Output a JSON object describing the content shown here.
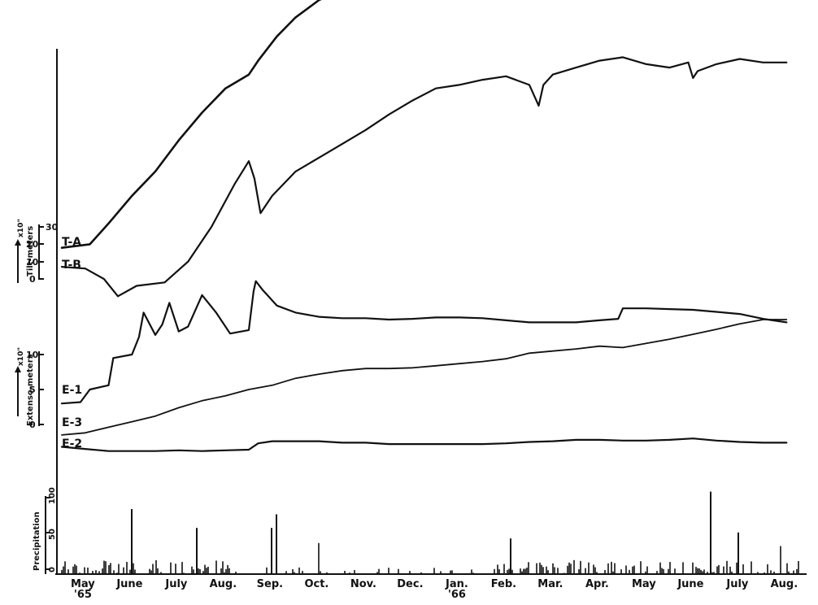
{
  "chart_data": {
    "type": "line",
    "title": "",
    "x_axis": {
      "tick_labels": [
        "May\n'65",
        "June",
        "July",
        "Aug.",
        "Sep.",
        "Oct.",
        "Nov.",
        "Dec.",
        "Jan.\n'66",
        "Feb.",
        "Mar.",
        "Apr.",
        "May",
        "June",
        "July",
        "Aug."
      ]
    },
    "panels": [
      {
        "name": "tilt-meters",
        "ylabel": "Tilt-meters",
        "y_unit_label": "x10\"",
        "y_ticks": [
          0,
          10,
          20,
          30
        ],
        "series": [
          {
            "name": "T-A",
            "x": [
              0.0,
              0.6,
              1.0,
              1.5,
              2.0,
              2.5,
              3.0,
              3.5,
              4.0,
              4.2,
              4.6,
              5.0,
              5.5,
              6.0,
              6.5,
              7.0,
              7.5,
              8.0,
              8.5,
              9.0,
              9.5,
              10.0,
              10.5,
              11.0,
              11.5,
              12.0,
              12.5,
              13.0,
              13.4,
              13.5,
              13.6,
              14.0,
              14.5,
              15.0,
              15.5
            ],
            "y": [
              18,
              20,
              32,
              48,
              62,
              80,
              96,
              110,
              118,
              126,
              140,
              151,
              161,
              167,
              162,
              175,
              188,
              196,
              201,
              207,
              211,
              214,
              216,
              220,
              221,
              223,
              224,
              226,
              227,
              256,
              257,
              255,
              248,
              254,
              258
            ]
          },
          {
            "name": "T-B",
            "x": [
              0.0,
              0.5,
              0.9,
              1.2,
              1.6,
              2.2,
              2.7,
              3.2,
              3.7,
              4.0,
              4.12,
              4.25,
              4.5,
              5.0,
              5.5,
              6.0,
              6.5,
              7.0,
              7.5,
              8.0,
              8.5,
              9.0,
              9.5,
              10.0,
              10.2,
              10.3,
              10.5,
              11.0,
              11.5,
              12.0,
              12.5,
              13.0,
              13.4,
              13.5,
              13.6,
              14.0,
              14.5,
              15.0,
              15.5
            ],
            "y": [
              7,
              6,
              0,
              -10,
              -4,
              -2,
              10,
              30,
              55,
              68,
              58,
              38,
              48,
              62,
              70,
              78,
              86,
              95,
              103,
              110,
              112,
              115,
              117,
              112,
              100,
              112,
              118,
              122,
              126,
              128,
              124,
              122,
              125,
              116,
              120,
              124,
              127,
              125,
              125
            ]
          }
        ]
      },
      {
        "name": "extensometers",
        "ylabel": "Extenso-meters",
        "y_unit_label": "x10\"",
        "y_ticks": [
          0,
          5,
          10
        ],
        "series": [
          {
            "name": "E-1",
            "x": [
              0.0,
              0.4,
              0.6,
              1.0,
              1.1,
              1.5,
              1.65,
              1.75,
              2.0,
              2.15,
              2.3,
              2.5,
              2.7,
              3.0,
              3.3,
              3.6,
              4.0,
              4.1,
              4.15,
              4.3,
              4.6,
              5.0,
              5.5,
              6.0,
              6.5,
              7.0,
              7.5,
              8.0,
              8.5,
              9.0,
              9.5,
              10.0,
              10.5,
              11.0,
              11.5,
              11.9,
              12.0,
              12.5,
              13.0,
              13.5,
              14.0,
              14.5,
              15.0,
              15.5
            ],
            "y": [
              3.0,
              3.2,
              5.0,
              5.6,
              9.5,
              10.0,
              12.5,
              16.0,
              12.8,
              14.3,
              17.4,
              13.3,
              14.0,
              18.5,
              16.0,
              13.0,
              13.5,
              19.0,
              20.5,
              19.2,
              17.0,
              16.0,
              15.4,
              15.2,
              15.2,
              15.0,
              15.1,
              15.3,
              15.3,
              15.2,
              14.9,
              14.6,
              14.6,
              14.6,
              14.9,
              15.1,
              16.6,
              16.6,
              16.5,
              16.4,
              16.1,
              15.8,
              15.1,
              14.6
            ]
          },
          {
            "name": "E-3",
            "x": [
              0.0,
              0.5,
              1.0,
              1.5,
              2.0,
              2.5,
              3.0,
              3.5,
              4.0,
              4.5,
              5.0,
              5.5,
              6.0,
              6.5,
              7.0,
              7.5,
              8.0,
              8.5,
              9.0,
              9.5,
              10.0,
              10.5,
              11.0,
              11.5,
              12.0,
              12.5,
              13.0,
              13.5,
              14.0,
              14.5,
              15.0,
              15.5
            ],
            "y": [
              -1.5,
              -1.2,
              -0.4,
              0.4,
              1.2,
              2.4,
              3.4,
              4.1,
              5.0,
              5.6,
              6.6,
              7.2,
              7.7,
              8.0,
              8.0,
              8.1,
              8.4,
              8.7,
              9.0,
              9.4,
              10.2,
              10.5,
              10.8,
              11.2,
              11.0,
              11.6,
              12.2,
              12.9,
              13.6,
              14.4,
              15.0,
              15.0
            ]
          },
          {
            "name": "E-2",
            "x": [
              0.0,
              0.5,
              1.0,
              1.5,
              2.0,
              2.5,
              3.0,
              3.5,
              4.0,
              4.2,
              4.5,
              5.0,
              5.5,
              6.0,
              6.5,
              7.0,
              7.5,
              8.0,
              8.5,
              9.0,
              9.5,
              10.0,
              10.5,
              11.0,
              11.5,
              12.0,
              12.5,
              13.0,
              13.5,
              14.0,
              14.5,
              15.0,
              15.5
            ],
            "y": [
              -3.2,
              -3.5,
              -3.8,
              -3.8,
              -3.8,
              -3.7,
              -3.8,
              -3.7,
              -3.6,
              -2.7,
              -2.4,
              -2.4,
              -2.4,
              -2.6,
              -2.6,
              -2.8,
              -2.8,
              -2.8,
              -2.8,
              -2.8,
              -2.7,
              -2.5,
              -2.4,
              -2.2,
              -2.2,
              -2.3,
              -2.3,
              -2.2,
              -2.0,
              -2.3,
              -2.5,
              -2.6,
              -2.6
            ]
          }
        ]
      },
      {
        "name": "precipitation",
        "type": "bar",
        "ylabel": "Precipitation",
        "y_ticks": [
          0,
          50,
          100
        ],
        "ylim": [
          0,
          150
        ]
      }
    ],
    "series_labels": [
      "T-A",
      "T-B",
      "E-1",
      "E-3",
      "E-2"
    ]
  }
}
